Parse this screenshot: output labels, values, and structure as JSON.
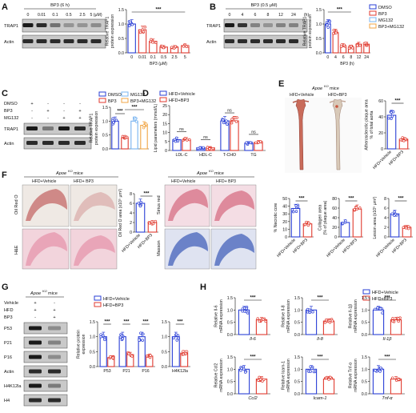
{
  "colors": {
    "blue": "#2a3fd6",
    "red": "#e03a2f",
    "lightblue": "#79b4f0",
    "orange": "#f0a545",
    "redbar": "#d94b3a",
    "blot_bg": "#c9c9c9",
    "oil_red": "#b53a3a",
    "he_pink": "#e9a5b8",
    "sirius_red": "#d8758a",
    "masson_blue": "#6b82c8"
  },
  "panels": {
    "A": {
      "label": "A",
      "treatment": "BP3 (6 h)",
      "lane_values": [
        "0",
        "0.01",
        "0.1",
        "0.5",
        "2.5",
        "5 (μM)"
      ],
      "rows": [
        "TRAP1",
        "Actin"
      ],
      "ylabel": "Relative TRAP1\nprotein expression",
      "xlabel": "BP3 (μM)",
      "yticks": [
        "0.0",
        "0.5",
        "1.0",
        "1.5"
      ],
      "xticks": [
        "0",
        "0.01",
        "0.1",
        "0.5",
        "2.5",
        "5"
      ],
      "sig": "***"
    },
    "B": {
      "label": "B",
      "treatment": "BP3 (0.5 μM)",
      "lane_values": [
        "0",
        "4",
        "6",
        "8",
        "12",
        "24",
        "(h)"
      ],
      "rows": [
        "TRAP1",
        "Actin"
      ],
      "ylabel": "Relative TRAP1\nprotein expression",
      "xlabel": "BP3 (h)",
      "yticks": [
        "0.0",
        "0.5",
        "1.0",
        "1.5"
      ],
      "xticks": [
        "0",
        "4",
        "6",
        "8",
        "12",
        "24"
      ],
      "sig": "***",
      "legend": [
        "DMSO",
        "BP3",
        "MG132",
        "BP3+MG132"
      ]
    },
    "C": {
      "label": "C",
      "conditions": [
        "DMSO",
        "BP3",
        "MG132"
      ],
      "signs": [
        [
          "+",
          "-",
          "-",
          "-"
        ],
        [
          "-",
          "+",
          "-",
          "+"
        ],
        [
          "-",
          "-",
          "+",
          "+"
        ]
      ],
      "rows": [
        "TRAP1",
        "Actin"
      ],
      "ylabel": "Relative TRAP1\nprotein expression",
      "yticks": [
        "0.0",
        "0.5",
        "1.0",
        "1.5"
      ],
      "legend": [
        "DMSO",
        "MG132",
        "BP3",
        "BP3+MG132"
      ],
      "sig": [
        "***",
        "***"
      ]
    },
    "D": {
      "label": "D",
      "legend": [
        "HFD+Vehicle",
        "HFD+BP3"
      ],
      "ylabel": "Lipid parameters (mmol/L)",
      "yticks": [
        "0",
        "5",
        "10",
        "15",
        "20",
        "25"
      ],
      "categories": [
        "LDL-C",
        "HDL-C",
        "T-CHO",
        "TG"
      ],
      "sig": [
        "ns",
        "ns",
        "ns",
        "ns"
      ]
    },
    "E": {
      "label": "E",
      "mice": "Apoe^KO mice",
      "mice_main": "Apoe",
      "mice_sup": "KO",
      "mice_rest": " mice",
      "groups": [
        "HFD+Vehicle",
        "HFD+BP3"
      ],
      "ylabel": "Atherosclerotic plaque area\n% of total aorta",
      "yticks": [
        "0",
        "20",
        "40",
        "60"
      ],
      "sig": "***"
    },
    "F": {
      "label": "F",
      "mice_main": "Apoe",
      "mice_sup": "KO",
      "mice_rest": " mice",
      "groups": [
        "HFD+Vehicle",
        "HFD+ BP3"
      ],
      "stains_left": [
        "Oil Red O",
        "H&E"
      ],
      "stains_right": [
        "Sirius red",
        "Masson"
      ],
      "oil_ylabel": "Oil Red O area (x10⁵ μm²)",
      "oil_yticks": [
        "0",
        "2",
        "4",
        "6",
        "8"
      ],
      "necrotic_ylabel": "% Necrotic core",
      "necrotic_yticks": [
        "0",
        "10",
        "20",
        "30",
        "40",
        "50"
      ],
      "collagen_ylabel": "Collagen area\n(% of plaque area)",
      "collagen_yticks": [
        "0",
        "20",
        "40",
        "60",
        "80"
      ],
      "lesion_ylabel": "Lesion area (x10⁵ μm²)",
      "lesion_yticks": [
        "0",
        "2",
        "4",
        "6",
        "8"
      ],
      "xcats": [
        "HFD+Vehicle",
        "HFD+BP3"
      ],
      "sig": "***"
    },
    "G": {
      "label": "G",
      "mice_main": "Apoe",
      "mice_sup": "KO",
      "mice_rest": " mice",
      "conditions": [
        "Vehicle",
        "HFD",
        "BP3"
      ],
      "signs": [
        [
          "+",
          "-"
        ],
        [
          "+",
          "+"
        ],
        [
          "-",
          "+"
        ]
      ],
      "rows": [
        "P53",
        "P21",
        "P16",
        "Actin",
        "H4K12la",
        "H4"
      ],
      "ylabel": "Relative protein\nexpression",
      "legend": [
        "HFD+Vehicle",
        "HFD+BP3"
      ],
      "yticks1": [
        "0.0",
        "0.5",
        "1.0",
        "1.5"
      ],
      "yticks2": [
        "0.0",
        "0.5",
        "1.0",
        "1.5"
      ],
      "cats1": [
        "P53",
        "P21",
        "P16"
      ],
      "cats2": [
        "H4K12la"
      ],
      "sig": "***"
    },
    "H": {
      "label": "H",
      "legend": [
        "HFD+Vehicle",
        "HFD+BP3"
      ],
      "plots": [
        {
          "ylabel": "Relative Il-6\nmRNA expression",
          "gene": "Il-6"
        },
        {
          "ylabel": "Relative Il-8\nmRNA expression",
          "gene": "Il-8"
        },
        {
          "ylabel": "Relative Il-1β\nmRNA expression",
          "gene": "Il-1β"
        },
        {
          "ylabel": "Relative Ccl2\nmRNA expression",
          "gene": "Ccl2"
        },
        {
          "ylabel": "Relative Icam-1\nmRNA expression",
          "gene": "Icam-1"
        },
        {
          "ylabel": "Relative Tnf-α\nmRNA expression",
          "gene": "Tnf-α"
        }
      ],
      "yticks": [
        "0.0",
        "0.5",
        "1.0",
        "1.5"
      ],
      "sig": "***"
    }
  },
  "chart_data": [
    {
      "panel": "A",
      "type": "bar",
      "categories": [
        "0",
        "0.01",
        "0.1",
        "0.5",
        "2.5",
        "5"
      ],
      "values": [
        1.0,
        0.8,
        0.4,
        0.2,
        0.2,
        0.25
      ],
      "xlabel": "BP3 (μM)",
      "ylabel": "Relative TRAP1 protein expression",
      "ylim": [
        0,
        1.5
      ]
    },
    {
      "panel": "B",
      "type": "bar",
      "categories": [
        "0",
        "4",
        "6",
        "8",
        "12",
        "24"
      ],
      "values": [
        1.0,
        0.7,
        0.25,
        0.2,
        0.3,
        0.3
      ],
      "xlabel": "BP3 (h)",
      "ylabel": "Relative TRAP1 protein expression",
      "ylim": [
        0,
        1.5
      ]
    },
    {
      "panel": "C",
      "type": "bar",
      "categories": [
        "DMSO",
        "BP3",
        "MG132",
        "BP3+MG132"
      ],
      "values": [
        1.0,
        0.4,
        1.0,
        0.85
      ],
      "ylabel": "Relative TRAP1 protein expression",
      "ylim": [
        0,
        1.5
      ]
    },
    {
      "panel": "D",
      "type": "bar",
      "categories": [
        "LDL-C",
        "HDL-C",
        "T-CHO",
        "TG"
      ],
      "series": [
        {
          "name": "HFD+Vehicle",
          "values": [
            6,
            1.5,
            16.5,
            4
          ]
        },
        {
          "name": "HFD+BP3",
          "values": [
            6,
            1.5,
            16.5,
            4.5
          ]
        }
      ],
      "ylabel": "Lipid parameters (mmol/L)",
      "ylim": [
        0,
        25
      ]
    },
    {
      "panel": "E",
      "type": "bar",
      "categories": [
        "HFD+Vehicle",
        "HFD+BP3"
      ],
      "values": [
        42,
        12
      ],
      "ylabel": "Atherosclerotic plaque area % of total aorta",
      "ylim": [
        0,
        60
      ]
    },
    {
      "panel": "F-oil",
      "type": "bar",
      "categories": [
        "HFD+Vehicle",
        "HFD+BP3"
      ],
      "values": [
        6,
        2
      ],
      "ylabel": "Oil Red O area (x10⁵ μm²)",
      "ylim": [
        0,
        8
      ]
    },
    {
      "panel": "F-necrotic",
      "type": "bar",
      "categories": [
        "HFD+Vehicle",
        "HFD+BP3"
      ],
      "values": [
        37,
        17
      ],
      "ylabel": "% Necrotic core",
      "ylim": [
        0,
        50
      ]
    },
    {
      "panel": "F-collagen",
      "type": "bar",
      "categories": [
        "HFD+Vehicle",
        "HFD+BP3"
      ],
      "values": [
        30,
        58
      ],
      "ylabel": "Collagen area (% of plaque area)",
      "ylim": [
        0,
        80
      ]
    },
    {
      "panel": "F-lesion",
      "type": "bar",
      "categories": [
        "HFD+Vehicle",
        "HFD+BP3"
      ],
      "values": [
        4.8,
        2
      ],
      "ylabel": "Lesion area (x10⁵ μm²)",
      "ylim": [
        0,
        8
      ]
    },
    {
      "panel": "G",
      "type": "bar",
      "categories": [
        "P53",
        "P21",
        "P16"
      ],
      "series": [
        {
          "name": "HFD+Vehicle",
          "values": [
            1.0,
            1.0,
            1.0
          ]
        },
        {
          "name": "HFD+BP3",
          "values": [
            0.3,
            0.4,
            0.35
          ]
        }
      ],
      "ylabel": "Relative protein expression",
      "ylim": [
        0,
        1.5
      ]
    },
    {
      "panel": "G2",
      "type": "bar",
      "categories": [
        "H4K12la"
      ],
      "series": [
        {
          "name": "HFD+Vehicle",
          "values": [
            1.0
          ]
        },
        {
          "name": "HFD+BP3",
          "values": [
            0.45
          ]
        }
      ],
      "ylim": [
        0,
        1.5
      ]
    },
    {
      "panel": "H-Il-6",
      "type": "bar",
      "categories": [
        "HFD+Vehicle",
        "HFD+BP3"
      ],
      "values": [
        1.0,
        0.6
      ],
      "ylabel": "Relative Il-6 mRNA expression",
      "ylim": [
        0,
        1.5
      ]
    },
    {
      "panel": "H-Il-8",
      "type": "bar",
      "categories": [
        "HFD+Vehicle",
        "HFD+BP3"
      ],
      "values": [
        1.0,
        0.55
      ],
      "ylabel": "Relative Il-8 mRNA expression",
      "ylim": [
        0,
        1.5
      ]
    },
    {
      "panel": "H-Il-1β",
      "type": "bar",
      "categories": [
        "HFD+Vehicle",
        "HFD+BP3"
      ],
      "values": [
        1.0,
        0.6
      ],
      "ylabel": "Relative Il-1β mRNA expression",
      "ylim": [
        0,
        1.5
      ]
    },
    {
      "panel": "H-Ccl2",
      "type": "bar",
      "categories": [
        "HFD+Vehicle",
        "HFD+BP3"
      ],
      "values": [
        1.0,
        0.6
      ],
      "ylabel": "Relative Ccl2 mRNA expression",
      "ylim": [
        0,
        1.5
      ]
    },
    {
      "panel": "H-Icam-1",
      "type": "bar",
      "categories": [
        "HFD+Vehicle",
        "HFD+BP3"
      ],
      "values": [
        1.0,
        0.6
      ],
      "ylabel": "Relative Icam-1 mRNA expression",
      "ylim": [
        0,
        1.5
      ]
    },
    {
      "panel": "H-Tnf-α",
      "type": "bar",
      "categories": [
        "HFD+Vehicle",
        "HFD+BP3"
      ],
      "values": [
        1.0,
        0.6
      ],
      "ylabel": "Relative Tnf-α mRNA expression",
      "ylim": [
        0,
        1.5
      ]
    }
  ]
}
